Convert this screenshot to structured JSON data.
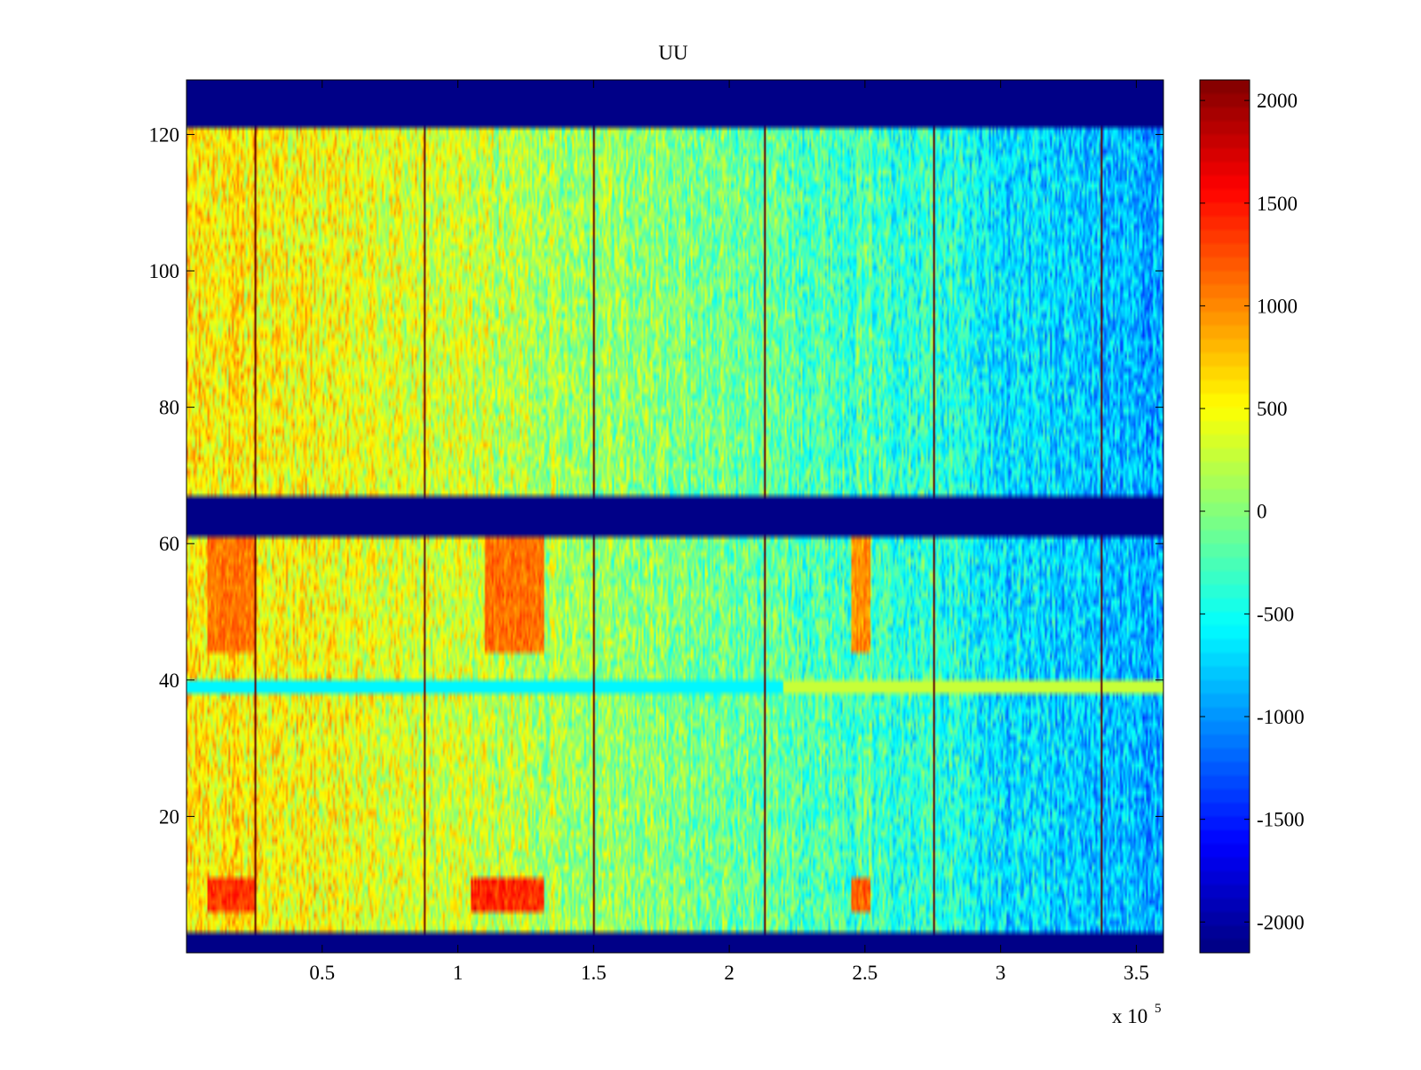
{
  "chart_data": {
    "type": "heatmap",
    "title": "UU",
    "xlabel": "",
    "ylabel": "",
    "x_multiplier_label": "x 10",
    "x_multiplier_exponent": "5",
    "xlim": [
      0.0,
      3.6
    ],
    "ylim": [
      0,
      128
    ],
    "x_ticks": [
      0.5,
      1,
      1.5,
      2,
      2.5,
      3,
      3.5
    ],
    "x_tick_labels": [
      "0.5",
      "1",
      "1.5",
      "2",
      "2.5",
      "3",
      "3.5"
    ],
    "y_ticks": [
      20,
      40,
      60,
      80,
      100,
      120
    ],
    "y_tick_labels": [
      "20",
      "40",
      "60",
      "80",
      "100",
      "120"
    ],
    "colorbar": {
      "colormap": "jet",
      "clim": [
        -2150,
        2100
      ],
      "ticks": [
        2000,
        1500,
        1000,
        500,
        0,
        -500,
        -1000,
        -1500,
        -2000
      ],
      "tick_labels": [
        "2000",
        "1500",
        "1000",
        "500",
        "0",
        "-500",
        "-1000",
        "-1500",
        "-2000"
      ]
    },
    "empty_row_bands": [
      {
        "y_from": 0,
        "y_to": 3,
        "value": -2150
      },
      {
        "y_from": 61,
        "y_to": 67,
        "value": -2150
      },
      {
        "y_from": 121,
        "y_to": 128,
        "value": -2150
      }
    ],
    "spike_columns_x": [
      0.25,
      0.875,
      1.5,
      2.125,
      2.75,
      3.37
    ],
    "spike_value": 2100,
    "horizontal_stripe": {
      "y": 39,
      "x_from": 0,
      "x_to": 3.6
    },
    "hot_spots": [
      {
        "x_from": 0.08,
        "x_to": 0.25,
        "y_from": 44,
        "y_to": 61,
        "value": 1300
      },
      {
        "x_from": 1.1,
        "x_to": 1.32,
        "y_from": 44,
        "y_to": 61,
        "value": 1500
      },
      {
        "x_from": 2.45,
        "x_to": 2.52,
        "y_from": 44,
        "y_to": 61,
        "value": 1500
      },
      {
        "x_from": 0.08,
        "x_to": 0.25,
        "y_from": 6,
        "y_to": 11,
        "value": 1700
      },
      {
        "x_from": 1.05,
        "x_to": 1.32,
        "y_from": 6,
        "y_to": 11,
        "value": 1900
      },
      {
        "x_from": 2.45,
        "x_to": 2.52,
        "y_from": 6,
        "y_to": 11,
        "value": 1800
      }
    ],
    "background_trend": [
      {
        "x": 0.0,
        "value": 600
      },
      {
        "x": 1.0,
        "value": 300
      },
      {
        "x": 2.0,
        "value": -100
      },
      {
        "x": 2.75,
        "value": -350
      },
      {
        "x": 3.0,
        "value": -650
      },
      {
        "x": 3.6,
        "value": -900
      }
    ]
  }
}
